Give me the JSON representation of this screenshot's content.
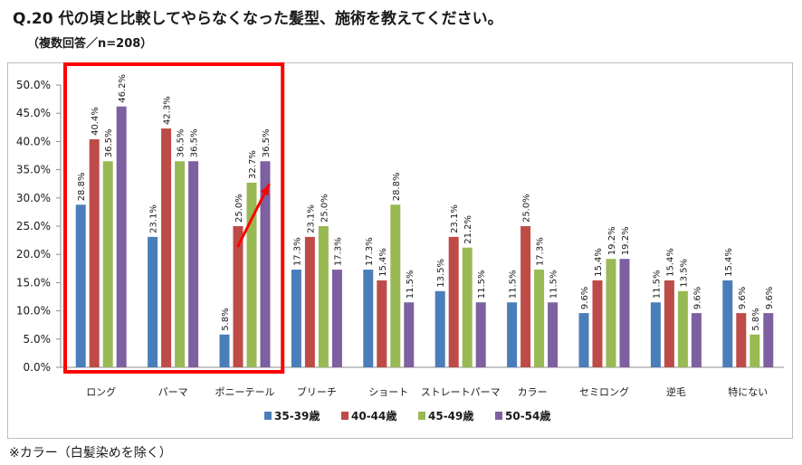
{
  "title": "Q.20 代の頃と比較してやらなくなった髪型、施術を教えてください。",
  "subtitle": "（複数回答／n=208）",
  "footnote": "※カラー（白髪染めを除く）",
  "chart_data": {
    "type": "bar",
    "categories": [
      "ロング",
      "パーマ",
      "ポニーテール",
      "ブリーチ",
      "ショート",
      "ストレートパーマ",
      "カラー",
      "セミロング",
      "逆毛",
      "特にない"
    ],
    "series": [
      {
        "name": "35-39歳",
        "color": "#4a7ebb",
        "values": [
          28.8,
          23.1,
          5.8,
          17.3,
          17.3,
          13.5,
          11.5,
          9.6,
          11.5,
          15.4
        ]
      },
      {
        "name": "40-44歳",
        "color": "#be4b48",
        "values": [
          40.4,
          42.3,
          25.0,
          23.1,
          15.4,
          23.1,
          25.0,
          15.4,
          15.4,
          9.6
        ]
      },
      {
        "name": "45-49歳",
        "color": "#98b954",
        "values": [
          36.5,
          36.5,
          32.7,
          25.0,
          28.8,
          21.2,
          17.3,
          19.2,
          13.5,
          5.8
        ]
      },
      {
        "name": "50-54歳",
        "color": "#7d60a0",
        "values": [
          46.2,
          36.5,
          36.5,
          17.3,
          11.5,
          11.5,
          11.5,
          19.2,
          9.6,
          9.6
        ]
      }
    ],
    "value_labels": [
      [
        "28.8%",
        "23.1%",
        "5.8%",
        "17.3%",
        "17.3%",
        "13.5%",
        "11.5%",
        "9.6%",
        "11.5%",
        "15.4%"
      ],
      [
        "40.4%",
        "42.3%",
        "25.0%",
        "23.1%",
        "15.4%",
        "23.1%",
        "25.0%",
        "15.4%",
        "15.4%",
        "9.6%"
      ],
      [
        "36.5%",
        "36.5%",
        "32.7%",
        "25.0%",
        "28.8%",
        "21.2%",
        "17.3%",
        "19.2%",
        "13.5%",
        "5.8%"
      ],
      [
        "46.2%",
        "36.5%",
        "36.5%",
        "17.3%",
        "11.5%",
        "11.5%",
        "11.5%",
        "19.2%",
        "9.6%",
        "9.6%"
      ]
    ],
    "y_ticks": [
      0,
      5,
      10,
      15,
      20,
      25,
      30,
      35,
      40,
      45,
      50
    ],
    "y_tick_labels": [
      "0.0%",
      "5.0%",
      "10.0%",
      "15.0%",
      "20.0%",
      "25.0%",
      "30.0%",
      "35.0%",
      "40.0%",
      "45.0%",
      "50.0%"
    ],
    "ylim": [
      0,
      50
    ],
    "grid": false,
    "legend_position": "bottom",
    "highlight": {
      "categories": [
        "ロング",
        "パーマ",
        "ポニーテール"
      ],
      "color": "#ff0000"
    },
    "trend_arrow": {
      "category": "ポニーテール",
      "from_series": "40-44歳",
      "to_series": "50-54歳",
      "color": "#ff0000"
    }
  }
}
